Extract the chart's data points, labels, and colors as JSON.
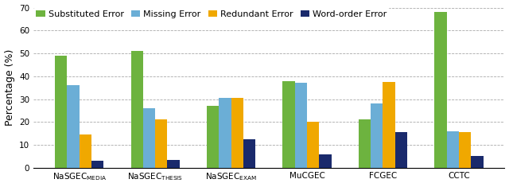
{
  "categories": [
    "NaSGEC$_{\\mathrm{MEDIA}}$",
    "NaSGEC$_{\\mathrm{THESIS}}$",
    "NaSGEC$_{\\mathrm{EXAM}}$",
    "MuCGEC",
    "FCGEC",
    "CCTC"
  ],
  "series_names": [
    "Substituted Error",
    "Missing Error",
    "Redundant Error",
    "Word-order Error"
  ],
  "series_data": {
    "Substituted Error": [
      49,
      51,
      27,
      38,
      21,
      68
    ],
    "Missing Error": [
      36,
      26,
      30.5,
      37,
      28,
      16
    ],
    "Redundant Error": [
      14.5,
      21,
      30.5,
      20,
      37.5,
      15.5
    ],
    "Word-order Error": [
      3,
      3.5,
      12.5,
      6,
      15.5,
      5
    ]
  },
  "colors": {
    "Substituted Error": "#6db33f",
    "Missing Error": "#6baed6",
    "Redundant Error": "#f0a800",
    "Word-order Error": "#1a2a6c"
  },
  "ylabel": "Percentage (%)",
  "ylim": [
    0,
    70
  ],
  "yticks": [
    0,
    10,
    20,
    30,
    40,
    50,
    60,
    70
  ],
  "bar_width": 0.16,
  "legend_fontsize": 8.0,
  "tick_fontsize": 7.5,
  "ylabel_fontsize": 9,
  "background_color": "#ffffff",
  "xtick_labels": [
    "NaSGEC$_{\\mathrm{MEDIA}}$",
    "NaSGEC$_{\\mathrm{THESIS}}$",
    "NaSGEC$_{\\mathrm{EXAM}}$",
    "MuCGEC",
    "FCGEC",
    "CCTC"
  ]
}
